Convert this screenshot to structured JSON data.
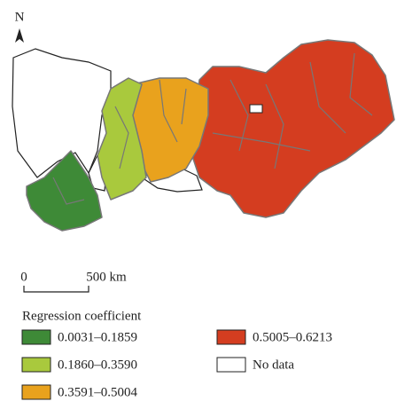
{
  "north": "N",
  "scale_bar": {
    "start": "0",
    "end": "500 km"
  },
  "legend": {
    "title": "Regression coefficient",
    "items": [
      {
        "label": "0.0031–0.1859",
        "color": "#3e8a37"
      },
      {
        "label": "0.1860–0.3590",
        "color": "#a9c93d"
      },
      {
        "label": "0.3591–0.5004",
        "color": "#e9a21d"
      },
      {
        "label": "0.5005–0.6213",
        "color": "#d43d20"
      },
      {
        "label": "No data",
        "color": "#ffffff"
      }
    ]
  }
}
